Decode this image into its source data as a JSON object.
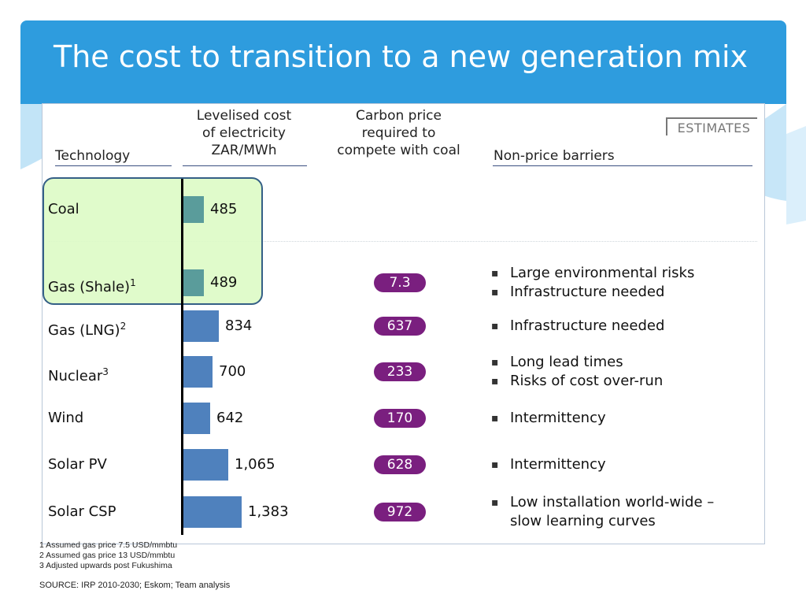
{
  "slide": {
    "title": "The cost to transition to a new generation mix",
    "colors": {
      "title_bar": "#2e9cde",
      "bar_highlight": "#5a9c9b",
      "bar_default": "#4f81bd",
      "pill": "#7a1f7f",
      "highlight_box": "#ddfbc6"
    }
  },
  "exhibit": {
    "estimates_label": "ESTIMATES",
    "headers": {
      "technology": "Technology",
      "lcoe": [
        "Levelised cost",
        "of electricity",
        "ZAR/MWh"
      ],
      "carbon": [
        "Carbon price",
        "required to",
        "compete with coal"
      ],
      "barriers": "Non-price barriers"
    }
  },
  "chart_data": {
    "type": "bar",
    "orientation": "horizontal",
    "categories": [
      "Coal",
      "Gas (Shale)",
      "Gas (LNG)",
      "Nuclear",
      "Wind",
      "Solar PV",
      "Solar CSP"
    ],
    "category_footnotes": [
      "",
      "1",
      "2",
      "3",
      "",
      "",
      ""
    ],
    "values": [
      485,
      489,
      834,
      700,
      642,
      1065,
      1383
    ],
    "value_labels": [
      "485",
      "489",
      "834",
      "700",
      "642",
      "1,065",
      "1,383"
    ],
    "highlighted": [
      true,
      true,
      false,
      false,
      false,
      false,
      false
    ],
    "carbon_price": [
      "",
      "7.3",
      "637",
      "233",
      "170",
      "628",
      "972"
    ],
    "barriers": [
      [],
      [
        "Large environmental risks",
        "Infrastructure needed"
      ],
      [
        "Infrastructure needed"
      ],
      [
        "Long lead times",
        "Risks of cost over-run"
      ],
      [
        "Intermittency"
      ],
      [
        "Intermittency"
      ],
      [
        "Low installation world-wide –",
        "slow learning curves"
      ]
    ]
  },
  "footnotes": [
    "1 Assumed gas price 7.5 USD/mmbtu",
    "2 Assumed gas price 13 USD/mmbtu",
    "3 Adjusted upwards post Fukushima"
  ],
  "source": "SOURCE: IRP 2010-2030; Eskom; Team analysis"
}
